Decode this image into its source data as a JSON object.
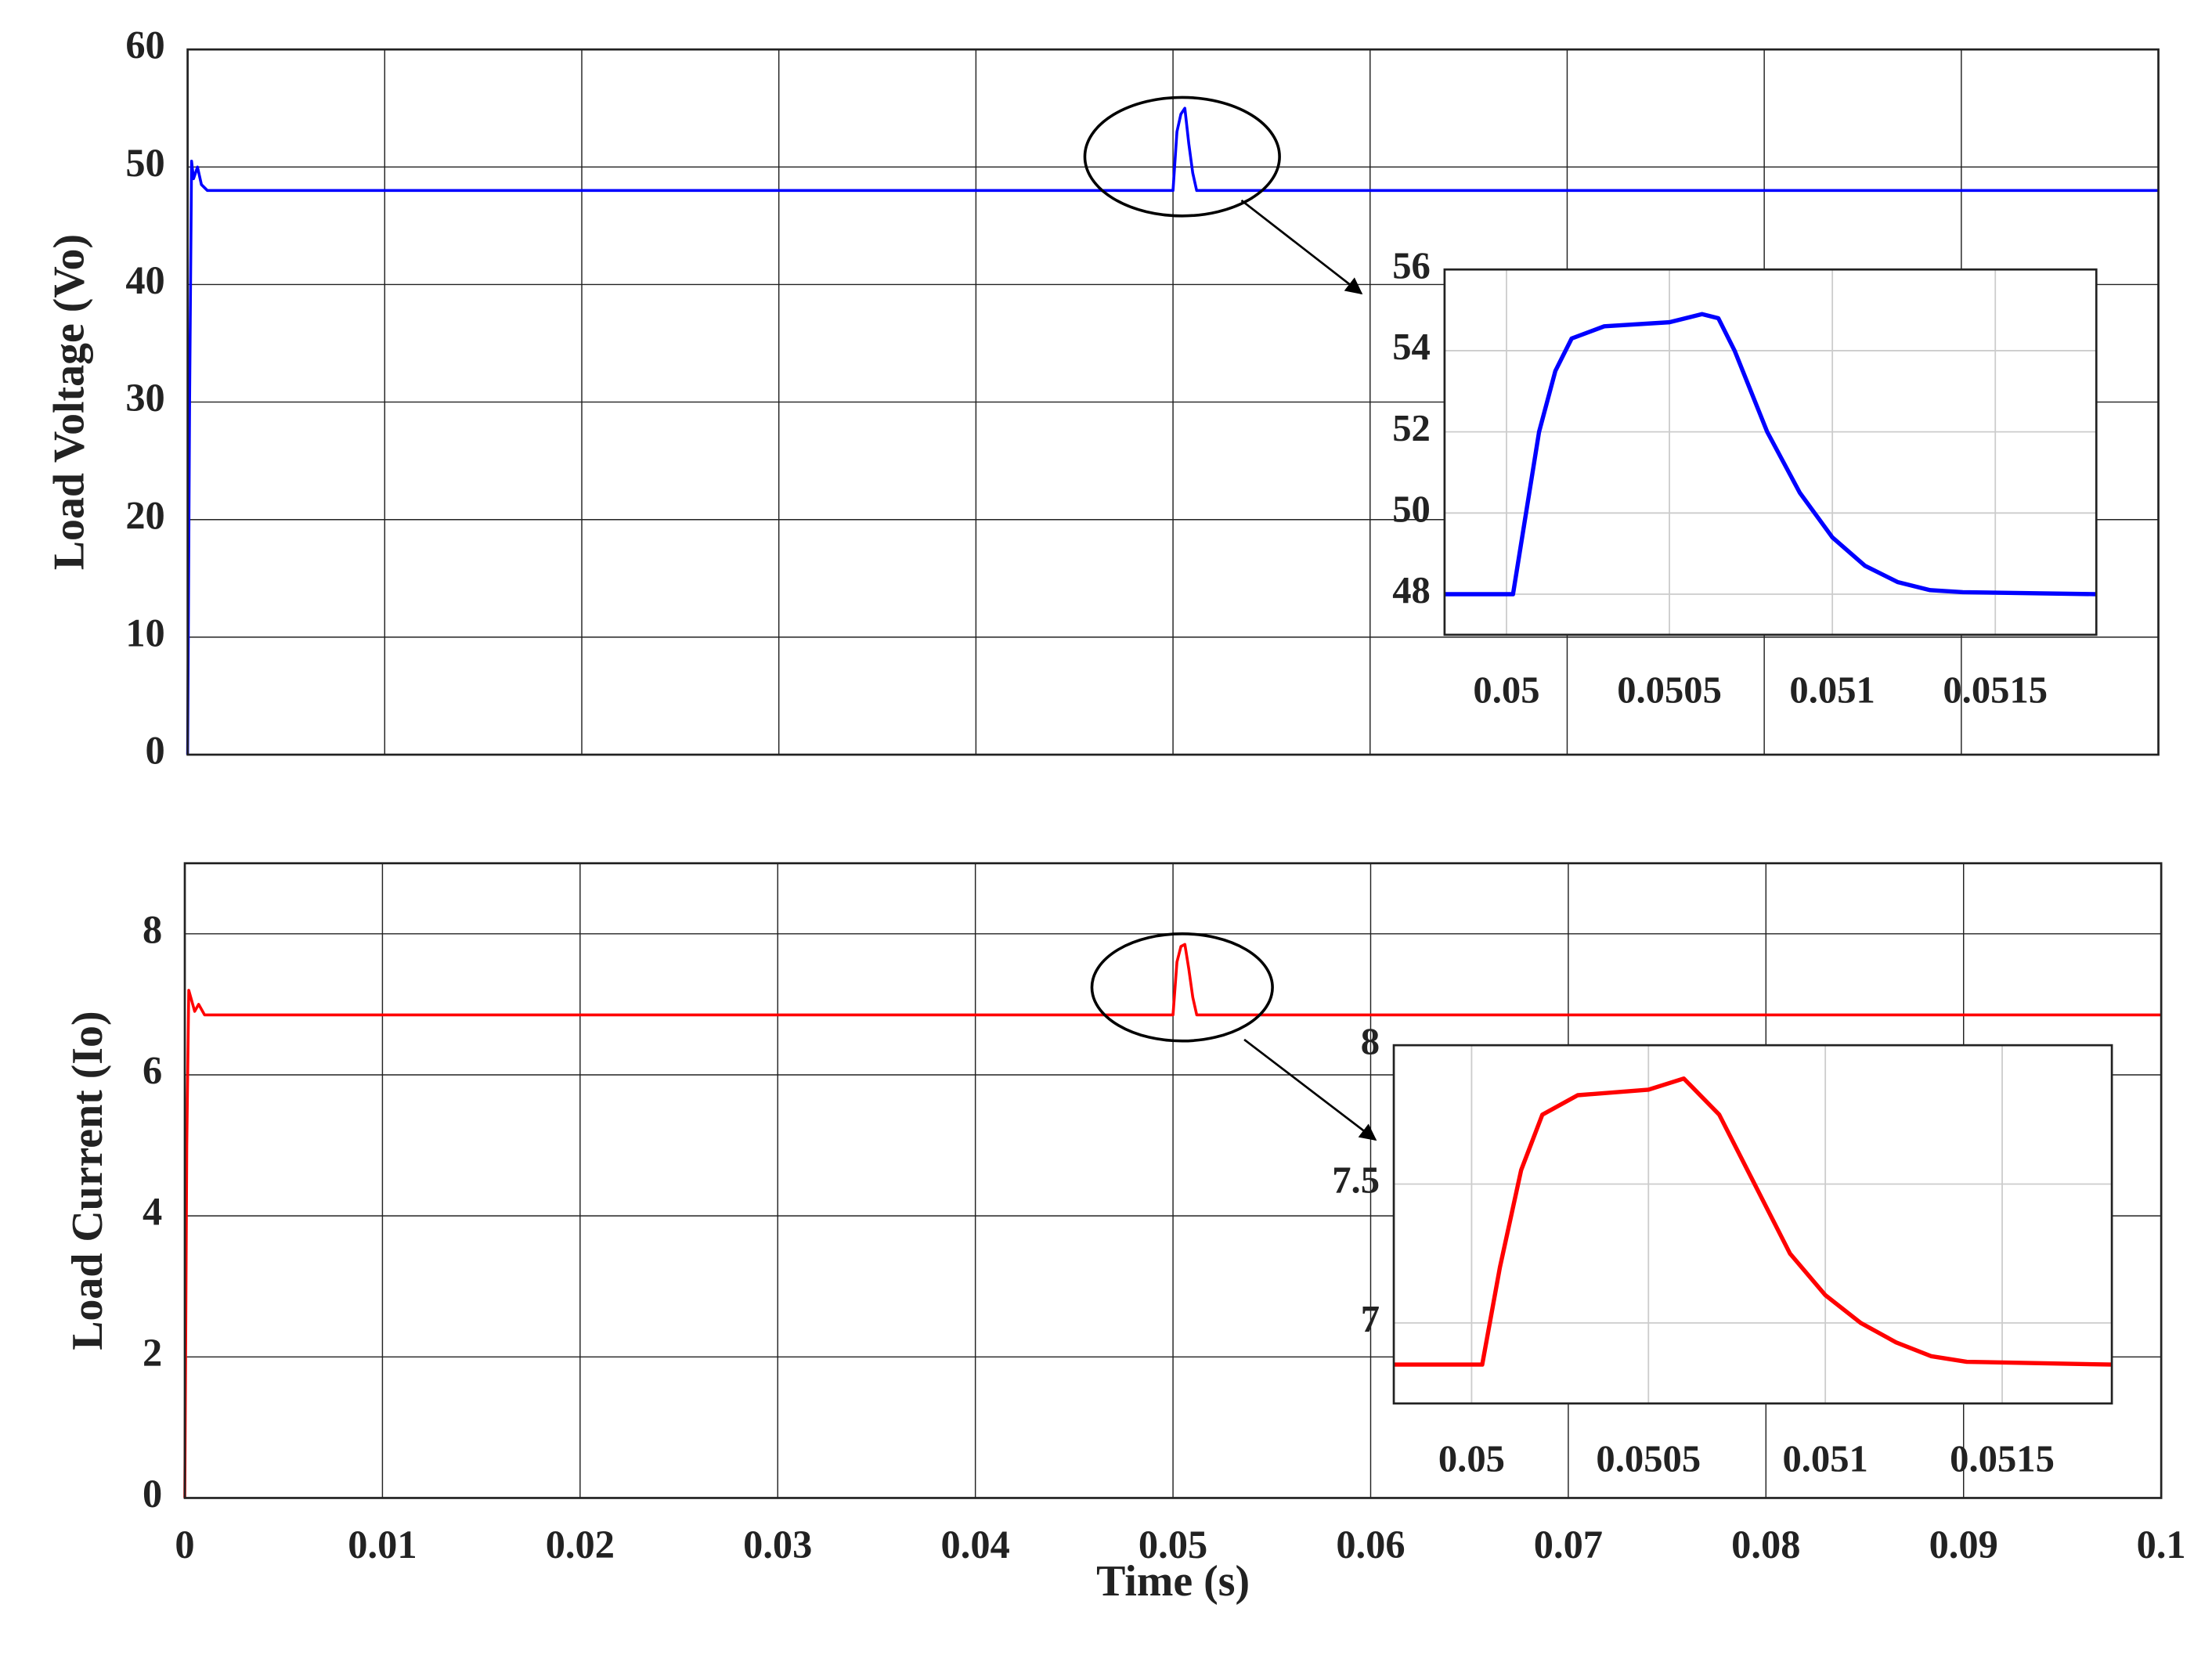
{
  "chart_data": [
    {
      "type": "line",
      "ylabel": "Load Voltage (Vo)",
      "color": "#0000ff",
      "grid": true,
      "xlim": [
        0,
        0.1
      ],
      "xticks": [
        0,
        0.01,
        0.02,
        0.03,
        0.04,
        0.05,
        0.06,
        0.07,
        0.08,
        0.09,
        0.1
      ],
      "ylim": [
        0,
        60
      ],
      "yticks": [
        0,
        10,
        20,
        30,
        40,
        50,
        60
      ],
      "x": [
        0,
        0.0001,
        0.0002,
        0.0003,
        0.0005,
        0.0007,
        0.001,
        0.0499,
        0.05,
        0.0502,
        0.0504,
        0.0506,
        0.0508,
        0.051,
        0.0512,
        0.1
      ],
      "values": [
        0,
        30,
        50.5,
        49,
        50,
        48.5,
        48,
        48,
        48,
        53,
        54.5,
        55,
        52,
        49.5,
        48,
        48
      ]
    },
    {
      "type": "line",
      "ylabel": "Load Current (Io)",
      "xlabel": "Time (s)",
      "color": "#ff0000",
      "grid": true,
      "xlim": [
        0,
        0.1
      ],
      "xticks": [
        0,
        0.01,
        0.02,
        0.03,
        0.04,
        0.05,
        0.06,
        0.07,
        0.08,
        0.09,
        0.1
      ],
      "ylim": [
        0,
        9
      ],
      "yticks": [
        0,
        2,
        4,
        6,
        8
      ],
      "x": [
        0,
        0.0001,
        0.0002,
        0.0003,
        0.0005,
        0.0007,
        0.001,
        0.0499,
        0.05,
        0.0502,
        0.0504,
        0.0506,
        0.0508,
        0.051,
        0.0512,
        0.1
      ],
      "values": [
        0,
        5,
        7.2,
        7.1,
        6.9,
        7.0,
        6.85,
        6.85,
        6.85,
        7.6,
        7.82,
        7.85,
        7.5,
        7.1,
        6.85,
        6.85
      ]
    },
    {
      "type": "line",
      "color": "#0000ff",
      "grid": true,
      "xlim": [
        0.04981,
        0.05181
      ],
      "xticks": [
        0.05,
        0.0505,
        0.051,
        0.0515
      ],
      "ylim": [
        47,
        56
      ],
      "yticks": [
        48,
        50,
        52,
        54,
        56
      ],
      "x": [
        0.04981,
        0.04995,
        0.05002,
        0.05005,
        0.0501,
        0.05015,
        0.0502,
        0.0503,
        0.0505,
        0.0506,
        0.05065,
        0.0507,
        0.0508,
        0.0509,
        0.051,
        0.0511,
        0.0512,
        0.0513,
        0.0514,
        0.05181
      ],
      "values": [
        48,
        48,
        48,
        49.5,
        52,
        53.5,
        54.3,
        54.6,
        54.7,
        54.9,
        54.8,
        54,
        52,
        50.5,
        49.4,
        48.7,
        48.3,
        48.1,
        48.05,
        48
      ]
    },
    {
      "type": "line",
      "color": "#ff0000",
      "grid": true,
      "xlim": [
        0.04978,
        0.05181
      ],
      "xticks": [
        0.05,
        0.0505,
        0.051,
        0.0515
      ],
      "ylim": [
        6.71,
        8
      ],
      "yticks": [
        7,
        7.5,
        8
      ],
      "x": [
        0.04978,
        0.04995,
        0.05003,
        0.05008,
        0.05014,
        0.0502,
        0.0503,
        0.0505,
        0.0506,
        0.0507,
        0.0508,
        0.0509,
        0.051,
        0.0511,
        0.0512,
        0.0513,
        0.0514,
        0.05181
      ],
      "values": [
        6.85,
        6.85,
        6.85,
        7.2,
        7.55,
        7.75,
        7.82,
        7.84,
        7.88,
        7.75,
        7.5,
        7.25,
        7.1,
        7.0,
        6.93,
        6.88,
        6.86,
        6.85
      ]
    }
  ]
}
